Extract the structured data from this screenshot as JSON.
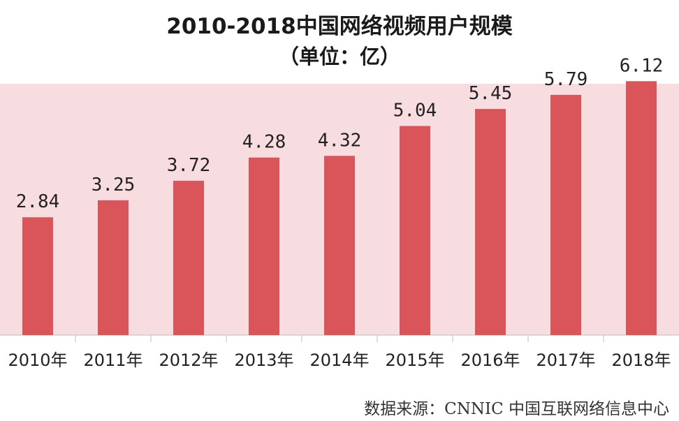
{
  "chart_data": {
    "type": "bar",
    "title": "2010-2018中国网络视频用户规模",
    "subtitle": "（单位：亿）",
    "categories": [
      "2010年",
      "2011年",
      "2012年",
      "2013年",
      "2014年",
      "2015年",
      "2016年",
      "2017年",
      "2018年"
    ],
    "values": [
      2.84,
      3.25,
      3.72,
      4.28,
      4.32,
      5.04,
      5.45,
      5.79,
      6.12
    ],
    "value_labels": [
      "2.84",
      "3.25",
      "3.72",
      "4.28",
      "4.32",
      "5.04",
      "5.45",
      "5.79",
      "6.12"
    ],
    "ylim": [
      0,
      7
    ],
    "grid": false,
    "legend": "none",
    "colors": {
      "bar": "#d9555a",
      "plot_background": "#f7dde0"
    }
  },
  "source": "数据来源：CNNIC 中国互联网络信息中心"
}
